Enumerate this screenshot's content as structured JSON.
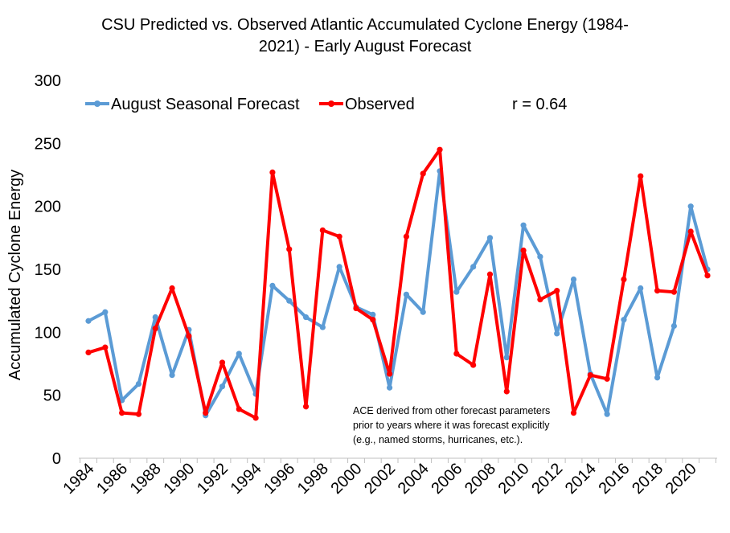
{
  "chart_data": {
    "type": "line",
    "title_line1": "CSU Predicted vs. Observed Atlantic Accumulated Cyclone Energy (1984-",
    "title_line2": "2021) - Early August Forecast",
    "xlabel": "",
    "ylabel": "Accumulated Cyclone Energy",
    "ylim": [
      0,
      300
    ],
    "yticks": [
      "0",
      "50",
      "100",
      "150",
      "200",
      "250",
      "300"
    ],
    "xtick_labels": [
      "1984",
      "1986",
      "1988",
      "1990",
      "1992",
      "1994",
      "1996",
      "1998",
      "2000",
      "2002",
      "2004",
      "2006",
      "2008",
      "2010",
      "2012",
      "2014",
      "2016",
      "2018",
      "2020"
    ],
    "x": [
      1984,
      1985,
      1986,
      1987,
      1988,
      1989,
      1990,
      1991,
      1992,
      1993,
      1994,
      1995,
      1996,
      1997,
      1998,
      1999,
      2000,
      2001,
      2002,
      2003,
      2004,
      2005,
      2006,
      2007,
      2008,
      2009,
      2010,
      2011,
      2012,
      2013,
      2014,
      2015,
      2016,
      2017,
      2018,
      2019,
      2020,
      2021
    ],
    "series": [
      {
        "name": "August Seasonal Forecast",
        "color": "#5b9bd5",
        "values": [
          109,
          116,
          46,
          59,
          112,
          66,
          102,
          34,
          57,
          83,
          51,
          137,
          125,
          112,
          104,
          152,
          120,
          114,
          56,
          130,
          116,
          228,
          132,
          152,
          175,
          80,
          185,
          160,
          99,
          142,
          67,
          35,
          110,
          135,
          64,
          105,
          200,
          150
        ]
      },
      {
        "name": "Observed",
        "color": "#ff0000",
        "values": [
          84,
          88,
          36,
          35,
          103,
          135,
          97,
          36,
          76,
          39,
          32,
          227,
          166,
          41,
          181,
          176,
          119,
          110,
          67,
          176,
          226,
          245,
          83,
          74,
          146,
          53,
          165,
          126,
          133,
          36,
          66,
          63,
          142,
          224,
          133,
          132,
          180,
          145
        ]
      }
    ],
    "annotation_r": "r = 0.64",
    "note_lines": [
      "ACE derived from other forecast parameters",
      "prior to years where it was forecast explicitly",
      "(e.g., named storms, hurricanes, etc.)."
    ],
    "grid": false,
    "legend_position": "top-left"
  }
}
